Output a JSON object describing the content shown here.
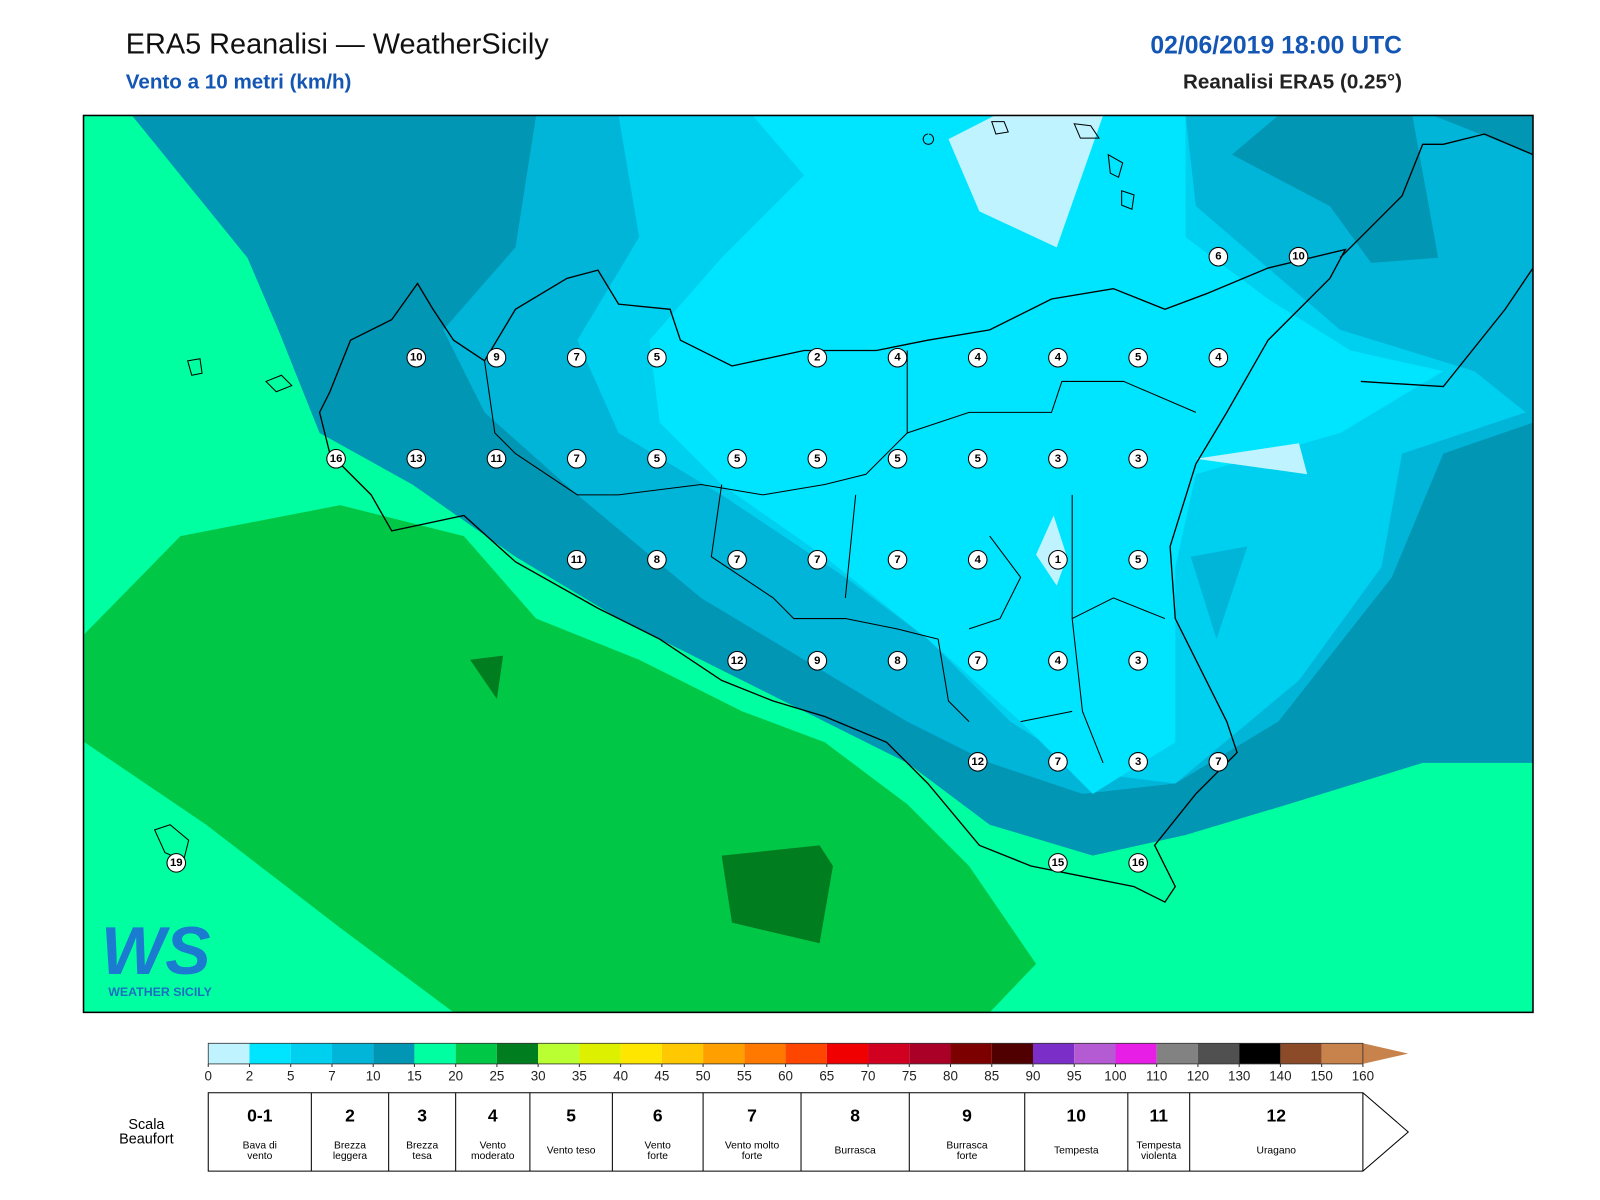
{
  "header": {
    "title": "ERA5 Reanalisi — WeatherSicily",
    "subtitle": "Vento a 10 metri (km/h)",
    "datetime": "02/06/2019 18:00 UTC",
    "source": "Reanalisi ERA5 (0.25°)"
  },
  "stations": {
    "rows": [
      [
        6,
        10
      ],
      [
        10,
        9,
        7,
        5,
        2,
        4,
        4,
        4,
        5,
        4
      ],
      [
        16,
        13,
        11,
        7,
        5,
        5,
        5,
        5,
        5,
        3,
        3
      ],
      [
        11,
        8,
        7,
        7,
        7,
        4,
        1,
        5
      ],
      [
        12,
        9,
        8,
        7,
        4,
        3
      ],
      [
        12,
        7,
        3,
        7
      ],
      [
        19,
        15,
        16
      ]
    ]
  },
  "logo": {
    "letters": "WS",
    "text": "WEATHER SICILY"
  },
  "colorbar": {
    "ticks": [
      0,
      2,
      5,
      7,
      10,
      15,
      20,
      25,
      30,
      35,
      40,
      45,
      50,
      55,
      60,
      65,
      70,
      75,
      80,
      85,
      90,
      95,
      100,
      110,
      120,
      130,
      140,
      150,
      160
    ],
    "colors": [
      "#bff3ff",
      "#00e5ff",
      "#00d0f0",
      "#00b5d8",
      "#0096b4",
      "#00ffa0",
      "#00c846",
      "#007d1e",
      "#b9ff32",
      "#dcf000",
      "#ffe600",
      "#ffc800",
      "#ffa000",
      "#ff7800",
      "#ff4600",
      "#f00000",
      "#d20020",
      "#aa0028",
      "#7d0000",
      "#500000",
      "#7b2fc8",
      "#b45ad2",
      "#e61ee6",
      "#828282",
      "#505050",
      "#000000",
      "#8c4b28",
      "#c8824b"
    ],
    "arrow_color": "#c8824b"
  },
  "beaufort": {
    "title": [
      "Scala",
      "Beaufort"
    ],
    "classes": [
      {
        "force": "0-1",
        "lines": [
          "Bava di",
          "vento"
        ]
      },
      {
        "force": "2",
        "lines": [
          "Brezza",
          "leggera"
        ]
      },
      {
        "force": "3",
        "lines": [
          "Brezza",
          "tesa"
        ]
      },
      {
        "force": "4",
        "lines": [
          "Vento",
          "moderato"
        ]
      },
      {
        "force": "5",
        "lines": [
          "Vento teso"
        ]
      },
      {
        "force": "6",
        "lines": [
          "Vento",
          "forte"
        ]
      },
      {
        "force": "7",
        "lines": [
          "Vento molto",
          "forte"
        ]
      },
      {
        "force": "8",
        "lines": [
          "Burrasca"
        ]
      },
      {
        "force": "9",
        "lines": [
          "Burrasca",
          "forte"
        ]
      },
      {
        "force": "10",
        "lines": [
          "Tempesta"
        ]
      },
      {
        "force": "11",
        "lines": [
          "Tempesta",
          "violenta"
        ]
      },
      {
        "force": "12",
        "lines": [
          "Uragano"
        ]
      }
    ]
  }
}
